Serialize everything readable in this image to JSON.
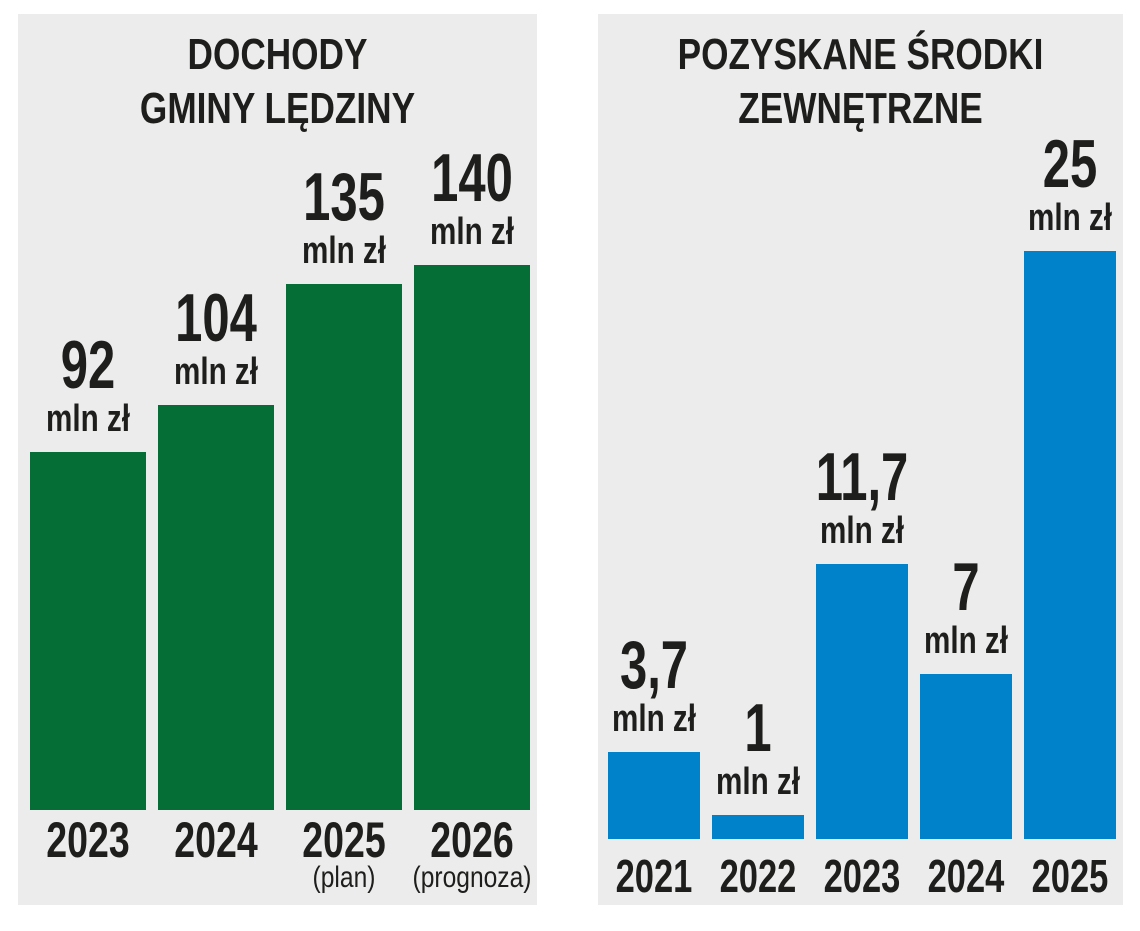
{
  "colors": {
    "green": "#056d36",
    "blue": "#0082cb",
    "panel_bg": "#ececec",
    "text": "#1e1e1c",
    "page_bg": "#ffffff"
  },
  "charts": [
    {
      "title": [
        "DOCHODY",
        "GMINY LĘDZINY"
      ],
      "bars": [
        {
          "value_label": "92",
          "unit": "mln zł",
          "year": "2023",
          "note": ""
        },
        {
          "value_label": "104",
          "unit": "mln zł",
          "year": "2024",
          "note": ""
        },
        {
          "value_label": "135",
          "unit": "mln zł",
          "year": "2025",
          "note": "(plan)"
        },
        {
          "value_label": "140",
          "unit": "mln zł",
          "year": "2026",
          "note": "(prognoza)"
        }
      ]
    },
    {
      "title": [
        "POZYSKANE ŚRODKI",
        "ZEWNĘTRZNE"
      ],
      "bars": [
        {
          "value_label": "3,7",
          "unit": "mln zł",
          "year": "2021",
          "note": ""
        },
        {
          "value_label": "1",
          "unit": "mln zł",
          "year": "2022",
          "note": ""
        },
        {
          "value_label": "11,7",
          "unit": "mln zł",
          "year": "2023",
          "note": ""
        },
        {
          "value_label": "7",
          "unit": "mln zł",
          "year": "2024",
          "note": ""
        },
        {
          "value_label": "25",
          "unit": "mln zł",
          "year": "2025",
          "note": ""
        }
      ]
    }
  ],
  "chart_data": [
    {
      "type": "bar",
      "title": "DOCHODY GMINY LĘDZINY",
      "categories": [
        "2023",
        "2024",
        "2025 (plan)",
        "2026 (prognoza)"
      ],
      "values": [
        92,
        104,
        135,
        140
      ],
      "unit": "mln zł",
      "value_labels": [
        "92 mln zł",
        "104 mln zł",
        "135 mln zł",
        "140 mln zł"
      ],
      "bar_color": "#056d36",
      "xlabel": "",
      "ylabel": "mln zł",
      "ylim": [
        0,
        140
      ],
      "grid": false,
      "legend": false
    },
    {
      "type": "bar",
      "title": "POZYSKANE ŚRODKI ZEWNĘTRZNE",
      "categories": [
        "2021",
        "2022",
        "2023",
        "2024",
        "2025"
      ],
      "values": [
        3.7,
        1,
        11.7,
        7,
        25
      ],
      "unit": "mln zł",
      "value_labels": [
        "3,7 mln zł",
        "1 mln zł",
        "11,7 mln zł",
        "7 mln zł",
        "25 mln zł"
      ],
      "bar_color": "#0082cb",
      "xlabel": "",
      "ylabel": "mln zł",
      "ylim": [
        0,
        25
      ],
      "grid": false,
      "legend": false
    }
  ]
}
